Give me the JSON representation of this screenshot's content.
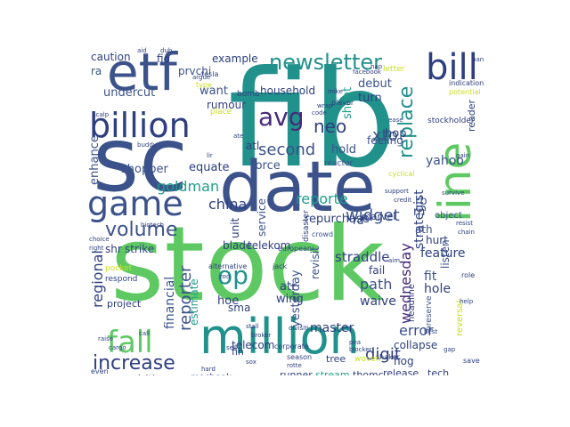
{
  "word_cloud": {
    "palette": {
      "dark_blue": "#3b528b",
      "navy": "#2e3f7f",
      "teal": "#21918c",
      "teal_green": "#1f9e89",
      "green": "#35b779",
      "light_green": "#5ec962",
      "lime": "#90d743",
      "yellow": "#c8e020",
      "purple": "#440154",
      "dark_purple": "#472a7a"
    },
    "words": {
      "stock": "stock",
      "fib": "fib",
      "date": "date",
      "sc": "sc",
      "million": "million",
      "etf": "etf",
      "billion": "billion",
      "game": "game",
      "bill": "bill",
      "line": "line",
      "newsletter": "newsletter",
      "avg": "avg",
      "fall": "fall",
      "increase": "increase",
      "volume": "volume",
      "op": "op",
      "second": "second",
      "goldman": "goldman",
      "neo": "neo",
      "widget": "widget",
      "replace": "replace",
      "xto": "xto",
      "reporte": "reporte",
      "china": "china",
      "digit": "digit",
      "error": "error",
      "wednesday": "wednesday",
      "regional": "regional",
      "reporter": "reporter",
      "financial": "financial",
      "path": "path",
      "hole": "hole",
      "fit": "fit",
      "repurchase": "repurchase",
      "straddle": "straddle",
      "strategist": "strategist",
      "yahoo": "yahoo",
      "feature": "feature",
      "listen": "listen",
      "hurt": "hurt",
      "hold": "hold",
      "force": "force",
      "hop": "hop",
      "feeling": "feeling",
      "turn": "turn",
      "debut": "debut",
      "household": "household",
      "want": "want",
      "rumour": "rumour",
      "undercut": "undercut",
      "equate": "equate",
      "shopper": "shopper",
      "enhance": "enhance",
      "caution": "caution",
      "fio": "fio",
      "ra": "ra",
      "example": "example",
      "prvchi": "prvchi",
      "master": "master",
      "yesterday": "yesterday",
      "telecom": "telecom",
      "collapse": "collapse",
      "acquisition": "acquisition",
      "macbook": "macbook",
      "runner": "runner",
      "stream": "stream",
      "tree": "tree",
      "thomc": "thomc",
      "release": "release",
      "tech": "tech",
      "hog": "hog",
      "waive": "waive",
      "atr": "atr",
      "wing": "wing",
      "hoe": "hoe",
      "sma": "sma",
      "estimate": "estimate",
      "strike": "strike",
      "shr": "shr",
      "project": "project",
      "blade": "blade",
      "telekom": "telekom",
      "unit": "unit",
      "service": "service",
      "revisit": "revisit",
      "rd": "rd",
      "rb": "rb",
      "rn": "rn",
      "ath": "ath",
      "marvel": "marvel",
      "object": "object",
      "headline": "headline",
      "preserve": "preserve",
      "reader": "reader",
      "stockholder": "stockholder",
      "sheet": "sheet",
      "atl": "atl",
      "fail": "fail",
      "alternative": "alternative",
      "pocket": "pocket",
      "respond": "respond",
      "european": "european",
      "crowd": "crowd",
      "disaster": "disaster",
      "letter": "letter",
      "place": "place",
      "bomb": "bomb",
      "type": "type",
      "tesla": "tesla",
      "argue": "argue",
      "reactor": "reactor",
      "cyclical": "cyclical",
      "indication": "indication",
      "potential": "potential",
      "player": "player",
      "support": "support",
      "credit": "credit",
      "biotech": "biotech",
      "choice": "choice",
      "right": "right",
      "even": "even",
      "reversal": "reversal",
      "season": "season",
      "corporate": "corporate",
      "shaker": "shaker",
      "role": "role",
      "save": "save",
      "jack": "jack",
      "fin": "fin",
      "broker": "broker",
      "stall": "stall",
      "woven": "woven",
      "sox": "sox",
      "ban": "ban",
      "facebook": "facebook",
      "hap": "hap",
      "divisiti": "divisiti",
      "cargo": "cargo",
      "lir": "lir",
      "sell": "sell",
      "rotte": "rotte",
      "pea": "pea",
      "blocker": "blocker",
      "raise": "raise",
      "best": "best",
      "scalp": "scalp",
      "help": "help",
      "gain": "gain",
      "buddy": "buddy",
      "survive": "survive",
      "resist": "resist",
      "chain": "chain",
      "aid": "aid",
      "dub": "dub",
      "mike": "mike",
      "call": "call",
      "hard": "hard",
      "ate": "ate",
      "ease": "ease",
      "wrap": "wrap",
      "code": "code",
      "aim": "aim",
      "zoo": "zoo",
      "gap": "gap"
    }
  }
}
